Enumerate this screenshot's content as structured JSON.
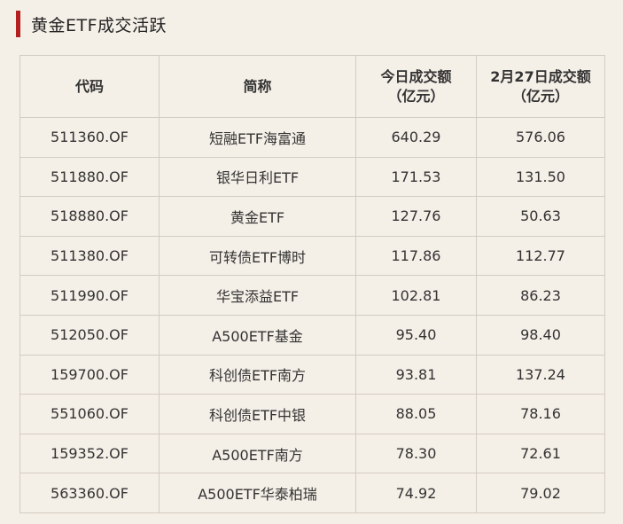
{
  "header": {
    "title": "黄金ETF成交活跃",
    "accent_color": "#b3201f"
  },
  "table": {
    "columns": [
      {
        "line1": "代码",
        "line2": ""
      },
      {
        "line1": "简称",
        "line2": ""
      },
      {
        "line1": "今日成交额",
        "line2": "（亿元）"
      },
      {
        "line1": "2月27日成交额",
        "line2": "（亿元）"
      }
    ],
    "rows": [
      {
        "code": "511360.OF",
        "name": "短融ETF海富通",
        "today": "640.29",
        "prev": "576.06"
      },
      {
        "code": "511880.OF",
        "name": "银华日利ETF",
        "today": "171.53",
        "prev": "131.50"
      },
      {
        "code": "518880.OF",
        "name": "黄金ETF",
        "today": "127.76",
        "prev": "50.63"
      },
      {
        "code": "511380.OF",
        "name": "可转债ETF博时",
        "today": "117.86",
        "prev": "112.77"
      },
      {
        "code": "511990.OF",
        "name": "华宝添益ETF",
        "today": "102.81",
        "prev": "86.23"
      },
      {
        "code": "512050.OF",
        "name": "A500ETF基金",
        "today": "95.40",
        "prev": "98.40"
      },
      {
        "code": "159700.OF",
        "name": "科创债ETF南方",
        "today": "93.81",
        "prev": "137.24"
      },
      {
        "code": "551060.OF",
        "name": "科创债ETF中银",
        "today": "88.05",
        "prev": "78.16"
      },
      {
        "code": "159352.OF",
        "name": "A500ETF南方",
        "today": "78.30",
        "prev": "72.61"
      },
      {
        "code": "563360.OF",
        "name": "A500ETF华泰柏瑞",
        "today": "74.92",
        "prev": "79.02"
      }
    ]
  }
}
